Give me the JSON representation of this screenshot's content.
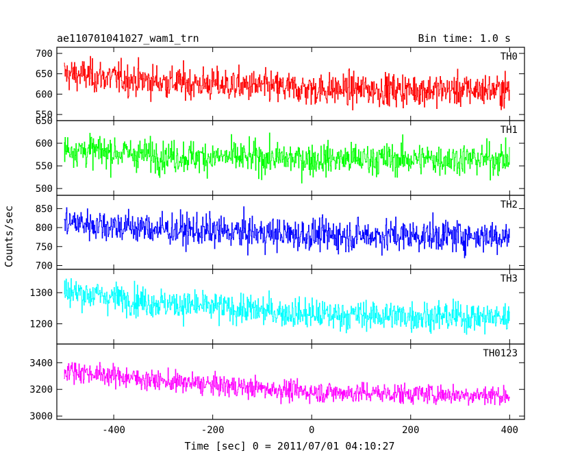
{
  "chart_data": {
    "type": "line",
    "title_left": "ae110701041027_wam1_trn",
    "title_right": "Bin time: 1.0 s",
    "xlabel": "Time [sec] 0 = 2011/07/01 04:10:27",
    "ylabel": "Counts/sec",
    "xlim": [
      -515,
      430
    ],
    "x_start": -500,
    "x_end": 400,
    "x_step": 1,
    "xticks": [
      -400,
      -200,
      0,
      200,
      400
    ],
    "panels": [
      {
        "name": "TH0",
        "color": "#ff0000",
        "ylim": [
          535,
          715
        ],
        "yticks": [
          550,
          600,
          650,
          700
        ],
        "trend": [
          [
            -500,
            650
          ],
          [
            -300,
            630
          ],
          [
            0,
            612
          ],
          [
            400,
            610
          ]
        ],
        "noise": 28
      },
      {
        "name": "TH1",
        "color": "#00ff00",
        "ylim": [
          485,
          650
        ],
        "yticks": [
          500,
          550,
          600,
          650
        ],
        "trend": [
          [
            -500,
            588
          ],
          [
            -300,
            572
          ],
          [
            0,
            565
          ],
          [
            400,
            565
          ]
        ],
        "noise": 25
      },
      {
        "name": "TH2",
        "color": "#0000ff",
        "ylim": [
          690,
          885
        ],
        "yticks": [
          700,
          750,
          800,
          850
        ],
        "trend": [
          [
            -500,
            815
          ],
          [
            -300,
            795
          ],
          [
            0,
            780
          ],
          [
            400,
            778
          ]
        ],
        "noise": 30
      },
      {
        "name": "TH3",
        "color": "#00ffff",
        "ylim": [
          1135,
          1375
        ],
        "yticks": [
          1200,
          1300
        ],
        "trend": [
          [
            -500,
            1305
          ],
          [
            -300,
            1265
          ],
          [
            0,
            1230
          ],
          [
            400,
            1220
          ]
        ],
        "noise": 34
      },
      {
        "name": "TH0123",
        "color": "#ff00ff",
        "ylim": [
          2975,
          3540
        ],
        "yticks": [
          3000,
          3200,
          3400
        ],
        "trend": [
          [
            -500,
            3345
          ],
          [
            -300,
            3260
          ],
          [
            0,
            3180
          ],
          [
            400,
            3155
          ]
        ],
        "noise": 55
      }
    ]
  }
}
